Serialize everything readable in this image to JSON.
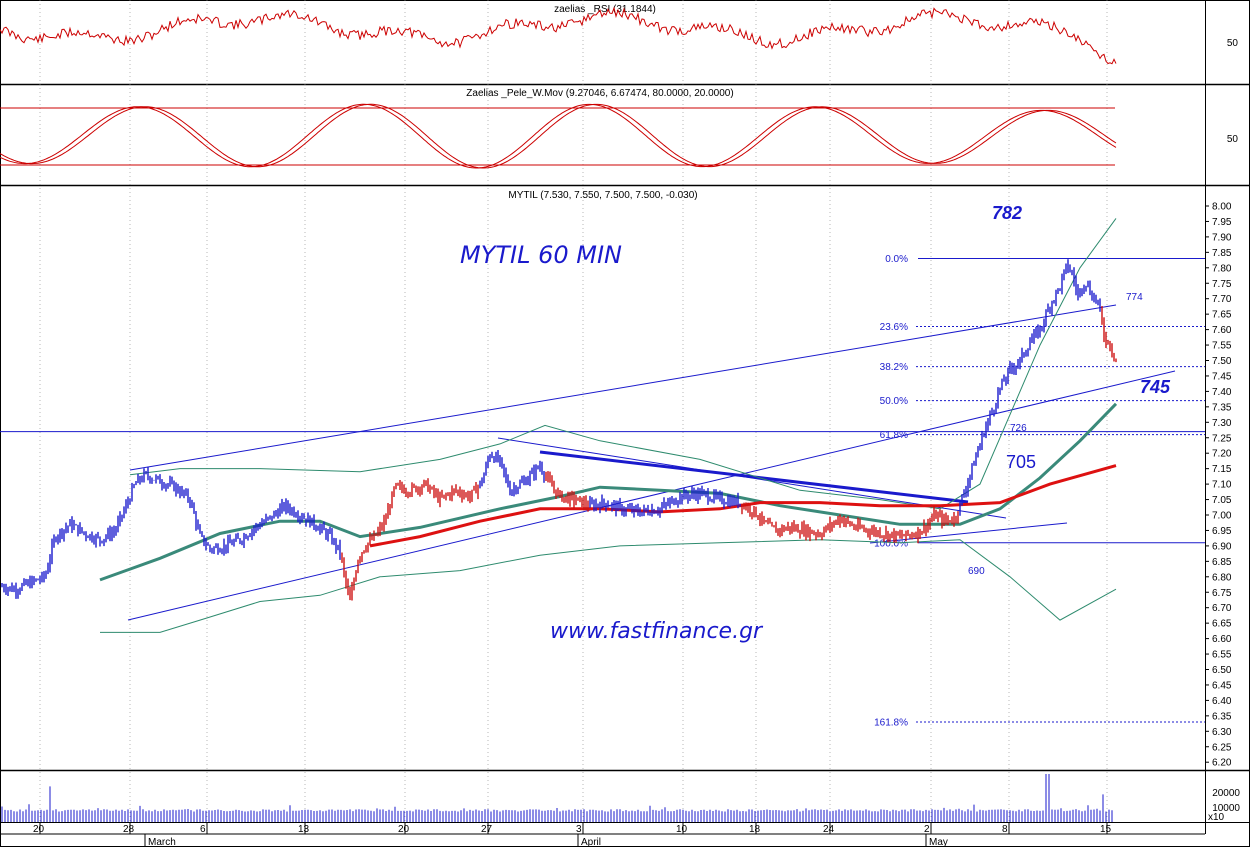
{
  "chart_data": [
    {
      "type": "line",
      "panel": "rsi",
      "title": "zaelias _RSI (31.1844)",
      "y_ticks": [
        "50"
      ],
      "color": "#cc0000"
    },
    {
      "type": "line",
      "panel": "stochastic",
      "title": "Zaelias _Pele_W.Mov (9.27046, 6.67474, 80.0000, 20.0000)",
      "y_ticks": [
        "50"
      ],
      "color": "#cc0000"
    },
    {
      "type": "candlestick",
      "panel": "price",
      "title": "MYTIL (7.530, 7.550, 7.500, 7.500, -0.030)",
      "annotation_title": "MYTIL 60 MIN",
      "watermark": "www.fastfinance.gr",
      "y_ticks": [
        "8.00",
        "7.95",
        "7.90",
        "7.85",
        "7.80",
        "7.75",
        "7.70",
        "7.65",
        "7.60",
        "7.55",
        "7.50",
        "7.45",
        "7.40",
        "7.35",
        "7.30",
        "7.25",
        "7.20",
        "7.15",
        "7.10",
        "7.05",
        "7.00",
        "6.95",
        "6.90",
        "6.85",
        "6.80",
        "6.75",
        "6.70",
        "6.65",
        "6.60",
        "6.55",
        "6.50",
        "6.45",
        "6.40",
        "6.35",
        "6.30",
        "6.25",
        "6.20"
      ],
      "ylim": [
        6.18,
        8.03
      ],
      "price_path": [
        [
          0,
          6.77
        ],
        [
          15,
          6.76
        ],
        [
          30,
          6.78
        ],
        [
          45,
          6.8
        ],
        [
          55,
          6.93
        ],
        [
          70,
          6.97
        ],
        [
          85,
          6.94
        ],
        [
          100,
          6.92
        ],
        [
          115,
          6.95
        ],
        [
          125,
          7.02
        ],
        [
          135,
          7.1
        ],
        [
          145,
          7.13
        ],
        [
          160,
          7.11
        ],
        [
          175,
          7.09
        ],
        [
          190,
          7.05
        ],
        [
          200,
          6.93
        ],
        [
          210,
          6.89
        ],
        [
          225,
          6.9
        ],
        [
          240,
          6.92
        ],
        [
          255,
          6.96
        ],
        [
          270,
          6.99
        ],
        [
          285,
          7.03
        ],
        [
          300,
          7.0
        ],
        [
          315,
          6.97
        ],
        [
          330,
          6.93
        ],
        [
          340,
          6.88
        ],
        [
          345,
          6.79
        ],
        [
          350,
          6.72
        ],
        [
          358,
          6.86
        ],
        [
          365,
          6.9
        ],
        [
          375,
          6.93
        ],
        [
          385,
          6.98
        ],
        [
          395,
          7.09
        ],
        [
          410,
          7.08
        ],
        [
          425,
          7.1
        ],
        [
          440,
          7.05
        ],
        [
          455,
          7.08
        ],
        [
          470,
          7.06
        ],
        [
          482,
          7.11
        ],
        [
          490,
          7.2
        ],
        [
          500,
          7.17
        ],
        [
          510,
          7.08
        ],
        [
          525,
          7.11
        ],
        [
          540,
          7.16
        ],
        [
          550,
          7.1
        ],
        [
          560,
          7.06
        ],
        [
          575,
          7.05
        ],
        [
          590,
          7.03
        ],
        [
          605,
          7.04
        ],
        [
          620,
          7.02
        ],
        [
          640,
          7.01
        ],
        [
          660,
          7.02
        ],
        [
          680,
          7.06
        ],
        [
          700,
          7.07
        ],
        [
          720,
          7.05
        ],
        [
          740,
          7.04
        ],
        [
          755,
          7.01
        ],
        [
          765,
          6.97
        ],
        [
          775,
          6.95
        ],
        [
          790,
          6.96
        ],
        [
          805,
          6.95
        ],
        [
          820,
          6.94
        ],
        [
          840,
          6.99
        ],
        [
          855,
          6.96
        ],
        [
          870,
          6.95
        ],
        [
          885,
          6.94
        ],
        [
          900,
          6.93
        ],
        [
          915,
          6.94
        ],
        [
          925,
          6.96
        ],
        [
          935,
          7.0
        ],
        [
          945,
          6.98
        ],
        [
          955,
          6.99
        ],
        [
          965,
          7.08
        ],
        [
          975,
          7.18
        ],
        [
          985,
          7.28
        ],
        [
          995,
          7.36
        ],
        [
          1000,
          7.41
        ],
        [
          1010,
          7.47
        ],
        [
          1020,
          7.5
        ],
        [
          1030,
          7.56
        ],
        [
          1040,
          7.6
        ],
        [
          1050,
          7.68
        ],
        [
          1060,
          7.74
        ],
        [
          1067,
          7.81
        ],
        [
          1072,
          7.78
        ],
        [
          1078,
          7.71
        ],
        [
          1085,
          7.76
        ],
        [
          1092,
          7.71
        ],
        [
          1098,
          7.69
        ],
        [
          1104,
          7.58
        ],
        [
          1110,
          7.55
        ],
        [
          1116,
          7.5
        ]
      ],
      "moving_avg_green": [
        [
          100,
          6.79
        ],
        [
          160,
          6.86
        ],
        [
          220,
          6.94
        ],
        [
          280,
          6.98
        ],
        [
          320,
          6.98
        ],
        [
          360,
          6.93
        ],
        [
          420,
          6.96
        ],
        [
          500,
          7.02
        ],
        [
          560,
          7.06
        ],
        [
          600,
          7.09
        ],
        [
          660,
          7.08
        ],
        [
          720,
          7.07
        ],
        [
          780,
          7.03
        ],
        [
          840,
          7.0
        ],
        [
          900,
          6.97
        ],
        [
          960,
          6.97
        ],
        [
          1000,
          7.02
        ],
        [
          1040,
          7.12
        ],
        [
          1080,
          7.24
        ],
        [
          1116,
          7.36
        ]
      ],
      "moving_avg_red": [
        [
          370,
          6.9
        ],
        [
          420,
          6.93
        ],
        [
          480,
          6.98
        ],
        [
          540,
          7.02
        ],
        [
          600,
          7.02
        ],
        [
          660,
          7.01
        ],
        [
          720,
          7.02
        ],
        [
          760,
          7.04
        ],
        [
          820,
          7.04
        ],
        [
          880,
          7.03
        ],
        [
          940,
          7.03
        ],
        [
          1000,
          7.04
        ],
        [
          1050,
          7.1
        ],
        [
          1116,
          7.16
        ]
      ],
      "bollinger_upper": [
        [
          130,
          7.13
        ],
        [
          180,
          7.15
        ],
        [
          260,
          7.15
        ],
        [
          360,
          7.14
        ],
        [
          440,
          7.18
        ],
        [
          500,
          7.23
        ],
        [
          545,
          7.29
        ],
        [
          600,
          7.24
        ],
        [
          700,
          7.18
        ],
        [
          800,
          7.08
        ],
        [
          880,
          7.05
        ],
        [
          940,
          7.02
        ],
        [
          980,
          7.1
        ],
        [
          1040,
          7.55
        ],
        [
          1080,
          7.8
        ],
        [
          1116,
          7.96
        ]
      ],
      "bollinger_lower": [
        [
          100,
          6.62
        ],
        [
          160,
          6.62
        ],
        [
          200,
          6.66
        ],
        [
          260,
          6.72
        ],
        [
          320,
          6.74
        ],
        [
          380,
          6.8
        ],
        [
          460,
          6.82
        ],
        [
          540,
          6.87
        ],
        [
          620,
          6.9
        ],
        [
          720,
          6.91
        ],
        [
          820,
          6.92
        ],
        [
          900,
          6.91
        ],
        [
          960,
          6.92
        ],
        [
          1010,
          6.8
        ],
        [
          1060,
          6.66
        ],
        [
          1116,
          6.76
        ]
      ],
      "fibonacci": [
        {
          "label": "0.0%",
          "value": 7.83
        },
        {
          "label": "23.6%",
          "value": 7.61
        },
        {
          "label": "38.2%",
          "value": 7.48
        },
        {
          "label": "50.0%",
          "value": 7.37
        },
        {
          "label": "61.8%",
          "value": 7.26
        },
        {
          "label": "100.0%",
          "value": 6.91
        },
        {
          "label": "161.8%",
          "value": 6.33
        }
      ],
      "annotations": [
        "782",
        "774",
        "745",
        "726",
        "705",
        "690"
      ],
      "horizontal_line": 7.27
    },
    {
      "type": "bar",
      "panel": "volume",
      "y_ticks": [
        "20000",
        "10000"
      ],
      "multiplier_label": "x10"
    }
  ],
  "x_axis": {
    "ticks": [
      "20",
      "28",
      "6",
      "13",
      "20",
      "27",
      "3",
      "10",
      "18",
      "24",
      "2",
      "8",
      "15"
    ],
    "months": [
      "March",
      "April",
      "May"
    ]
  }
}
